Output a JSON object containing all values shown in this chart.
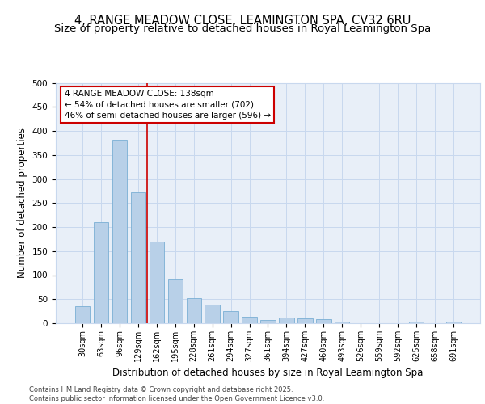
{
  "title": "4, RANGE MEADOW CLOSE, LEAMINGTON SPA, CV32 6RU",
  "subtitle": "Size of property relative to detached houses in Royal Leamington Spa",
  "xlabel": "Distribution of detached houses by size in Royal Leamington Spa",
  "ylabel": "Number of detached properties",
  "categories": [
    "30sqm",
    "63sqm",
    "96sqm",
    "129sqm",
    "162sqm",
    "195sqm",
    "228sqm",
    "261sqm",
    "294sqm",
    "327sqm",
    "361sqm",
    "394sqm",
    "427sqm",
    "460sqm",
    "493sqm",
    "526sqm",
    "559sqm",
    "592sqm",
    "625sqm",
    "658sqm",
    "691sqm"
  ],
  "values": [
    35,
    210,
    382,
    272,
    169,
    93,
    52,
    39,
    25,
    13,
    7,
    11,
    10,
    9,
    4,
    0,
    0,
    0,
    3,
    0,
    3
  ],
  "bar_color": "#b8d0e8",
  "bar_edge_color": "#7aaed4",
  "grid_color": "#c8d8ee",
  "background_color": "#e8eff8",
  "annotation_line1": "4 RANGE MEADOW CLOSE: 138sqm",
  "annotation_line2": "← 54% of detached houses are smaller (702)",
  "annotation_line3": "46% of semi-detached houses are larger (596) →",
  "annotation_box_color": "#cc0000",
  "vline_color": "#cc0000",
  "footer": "Contains HM Land Registry data © Crown copyright and database right 2025.\nContains public sector information licensed under the Open Government Licence v3.0.",
  "ylim": [
    0,
    500
  ],
  "yticks": [
    0,
    50,
    100,
    150,
    200,
    250,
    300,
    350,
    400,
    450,
    500
  ],
  "title_fontsize": 10.5,
  "subtitle_fontsize": 9.5,
  "tick_fontsize": 7,
  "ylabel_fontsize": 8.5,
  "xlabel_fontsize": 8.5,
  "annotation_fontsize": 7.5,
  "footer_fontsize": 6
}
